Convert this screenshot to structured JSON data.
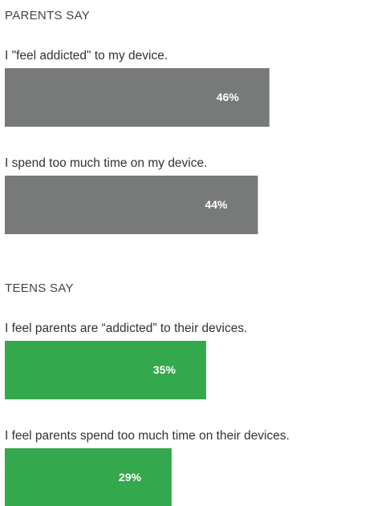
{
  "chart_data": [
    {
      "type": "bar",
      "title": "PARENTS SAY",
      "categories": [
        "I \"feel addicted\" to my device.",
        "I spend too much time on my device."
      ],
      "values": [
        46,
        44
      ],
      "value_labels": [
        "46%",
        "44%"
      ],
      "color": "#777a79"
    },
    {
      "type": "bar",
      "title": "TEENS SAY",
      "categories": [
        "I feel parents are “addicted” to their devices.",
        "I feel parents spend too much time on their devices."
      ],
      "values": [
        35,
        29
      ],
      "value_labels": [
        "35%",
        "29%"
      ],
      "color": "#34a84d"
    }
  ]
}
